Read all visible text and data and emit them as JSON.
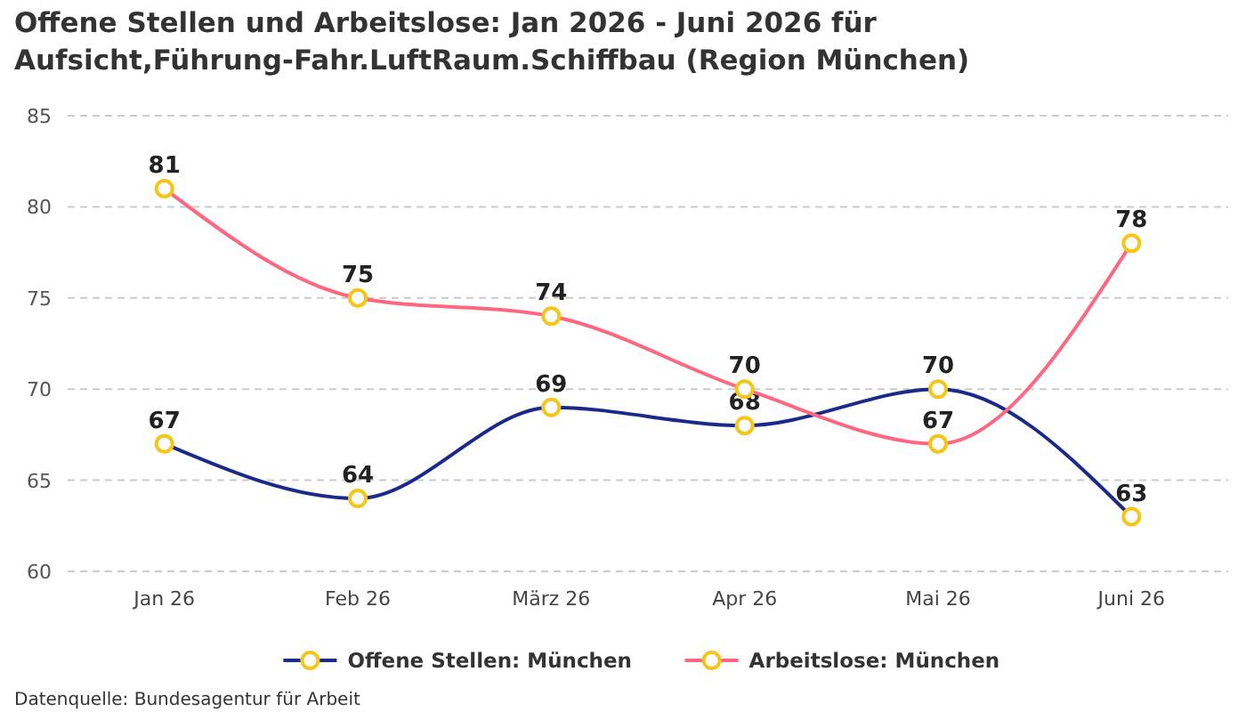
{
  "chart_data": {
    "type": "line",
    "title": "Offene Stellen und Arbeitslose: Jan 2026 - Juni 2026 für Aufsicht,Führung-Fahr.LuftRaum.Schiffbau (Region München)",
    "categories": [
      "Jan 26",
      "Feb 26",
      "März 26",
      "Apr 26",
      "Mai 26",
      "Juni 26"
    ],
    "series": [
      {
        "name": "Offene Stellen: München",
        "color": "#1a2a8a",
        "values": [
          67,
          64,
          69,
          68,
          70,
          63
        ]
      },
      {
        "name": "Arbeitslose: München",
        "color": "#ff6680",
        "values": [
          81,
          75,
          74,
          70,
          67,
          78
        ]
      }
    ],
    "ylim": [
      60,
      85
    ],
    "yticks": [
      60,
      65,
      70,
      75,
      80,
      85
    ],
    "grid": "y",
    "legend": "bottom",
    "marker": "circle",
    "data_labels": true,
    "annotations": [
      "Datenquelle: Bundesagentur für Arbeit"
    ]
  }
}
